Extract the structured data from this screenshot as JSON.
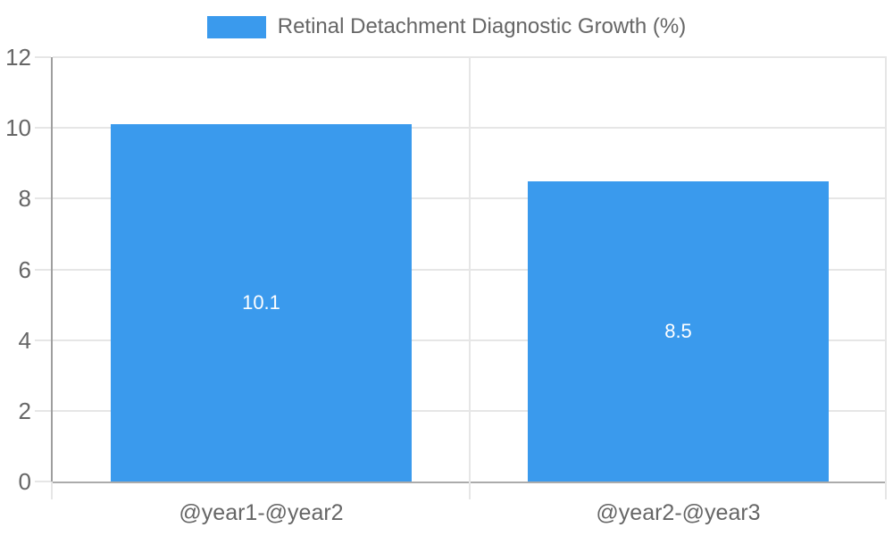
{
  "legend": {
    "label": "Retinal Detachment Diagnostic Growth (%)"
  },
  "chart_data": {
    "type": "bar",
    "title": "Retinal Detachment Diagnostic Growth (%)",
    "categories": [
      "@year1-@year2",
      "@year2-@year3"
    ],
    "values": [
      10.1,
      8.5
    ],
    "value_labels": [
      "10.1",
      "8.5"
    ],
    "ylim": [
      0,
      12
    ],
    "ytick_step": 2,
    "ytick_labels": [
      "0",
      "2",
      "4",
      "6",
      "8",
      "10",
      "12"
    ],
    "bar_color": "#3a9aed",
    "grid": true,
    "legend_position": "top",
    "xlabel": "",
    "ylabel": ""
  },
  "colors": {
    "bar": "#3a9aed",
    "grid_line": "#e6e6e6",
    "axis_line_left": "#9e9e9e",
    "axis_line_bottom": "#ababab",
    "text": "#666666",
    "value_label": "#ffffff",
    "background": "#ffffff"
  }
}
